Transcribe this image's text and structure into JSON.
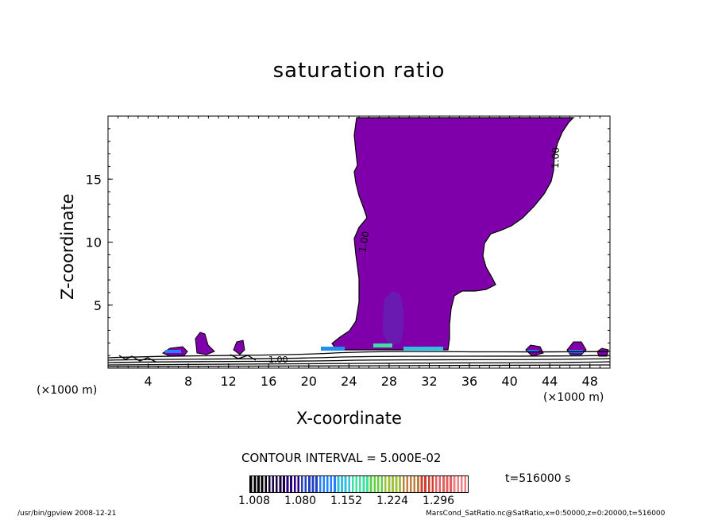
{
  "chart_data": {
    "type": "contour",
    "title": "saturation ratio",
    "xlabel": "X-coordinate",
    "ylabel": "Z-coordinate",
    "x_unit_left": "(×1000 m)",
    "x_unit_right": "(×1000 m)",
    "xlim": [
      0,
      50
    ],
    "ylim": [
      0,
      20
    ],
    "x_ticks": [
      "4",
      "8",
      "12",
      "16",
      "20",
      "24",
      "28",
      "32",
      "36",
      "40",
      "44",
      "48"
    ],
    "y_ticks": [
      "5",
      "10",
      "15"
    ],
    "contour_labels": [
      "1.00",
      "1.00",
      "1.00"
    ],
    "contour_interval_text": "CONTOUR INTERVAL = 5.000E-02",
    "colorbar_ticks": [
      "1.008",
      "1.080",
      "1.152",
      "1.224",
      "1.296"
    ],
    "colorbar_range": [
      1.008,
      1.296
    ],
    "time_label": "t=516000 s",
    "fill_color": "#7f00aa",
    "footer_left": "/usr/bin/gpview   2008-12-21",
    "footer_right": "MarsCond_SatRatio.nc@SatRatio,x=0:50000,z=0:20000,t=516000"
  }
}
